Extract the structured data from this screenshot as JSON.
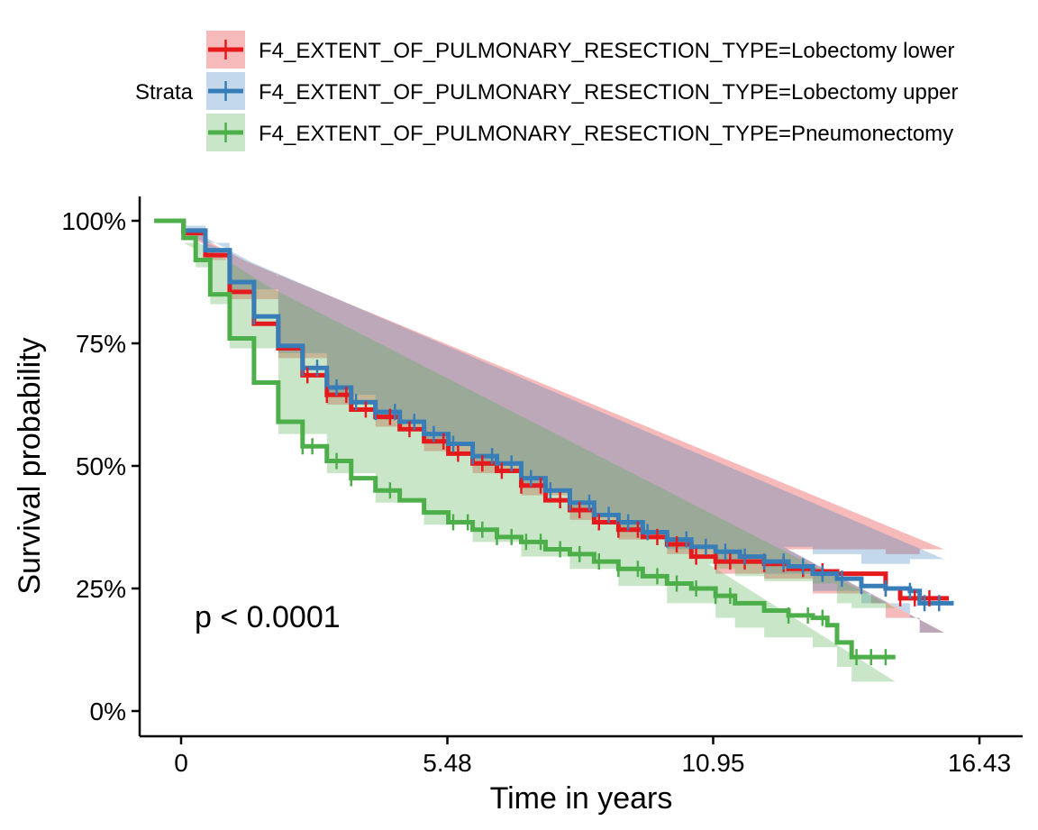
{
  "chart_data": {
    "type": "line",
    "subtype": "kaplan-meier",
    "title": "",
    "xlabel": "Time in years",
    "ylabel": "Survival probability",
    "xlim": [
      -0.82,
      16.9
    ],
    "ylim": [
      -0.05,
      1.05
    ],
    "x_ticks": [
      0,
      5.48,
      10.95,
      16.43
    ],
    "x_tick_labels": [
      "0",
      "5.48",
      "10.95",
      "16.43"
    ],
    "y_ticks": [
      0,
      0.25,
      0.5,
      0.75,
      1.0
    ],
    "y_tick_labels": [
      "0%",
      "25%",
      "50%",
      "75%",
      "100%"
    ],
    "grid": false,
    "legend": {
      "title": "Strata",
      "position": "top"
    },
    "annotation": "p <  0.0001",
    "series": [
      {
        "name": "F4_EXTENT_OF_PULMONARY_RESECTION_TYPE=Lobectomy lower",
        "color": "#E41A1C",
        "band": "#F4B6B7",
        "points": [
          [
            -0.55,
            1.0
          ],
          [
            0,
            1.0
          ],
          [
            0.05,
            0.975
          ],
          [
            0.5,
            0.93
          ],
          [
            1.0,
            0.855
          ],
          [
            1.5,
            0.79
          ],
          [
            2.0,
            0.74
          ],
          [
            2.5,
            0.685
          ],
          [
            3.0,
            0.645
          ],
          [
            3.5,
            0.615
          ],
          [
            4.0,
            0.6
          ],
          [
            4.5,
            0.575
          ],
          [
            5.0,
            0.55
          ],
          [
            5.5,
            0.525
          ],
          [
            6.0,
            0.505
          ],
          [
            6.5,
            0.49
          ],
          [
            7.0,
            0.46
          ],
          [
            7.5,
            0.43
          ],
          [
            8.0,
            0.41
          ],
          [
            8.5,
            0.385
          ],
          [
            9.0,
            0.37
          ],
          [
            9.5,
            0.355
          ],
          [
            10.0,
            0.34
          ],
          [
            10.5,
            0.315
          ],
          [
            11.0,
            0.305
          ],
          [
            11.5,
            0.305
          ],
          [
            12.0,
            0.3
          ],
          [
            12.5,
            0.29
          ],
          [
            13.0,
            0.285
          ],
          [
            13.5,
            0.28
          ],
          [
            14.2,
            0.28
          ],
          [
            14.5,
            0.25
          ],
          [
            14.8,
            0.23
          ],
          [
            15.8,
            0.23
          ]
        ],
        "band_lower": [
          [
            0.05,
            0.97
          ],
          [
            0.5,
            0.92
          ],
          [
            1.0,
            0.84
          ],
          [
            2.0,
            0.72
          ],
          [
            3.0,
            0.625
          ],
          [
            4.0,
            0.58
          ],
          [
            5.0,
            0.53
          ],
          [
            6.0,
            0.485
          ],
          [
            7.0,
            0.44
          ],
          [
            8.0,
            0.39
          ],
          [
            9.0,
            0.35
          ],
          [
            10.0,
            0.32
          ],
          [
            11.0,
            0.28
          ],
          [
            12.0,
            0.27
          ],
          [
            13.0,
            0.24
          ],
          [
            14.2,
            0.22
          ],
          [
            14.5,
            0.19
          ],
          [
            15.2,
            0.16
          ],
          [
            15.7,
            0.16
          ]
        ],
        "band_upper": [
          [
            0.05,
            0.985
          ],
          [
            0.5,
            0.94
          ],
          [
            1.0,
            0.87
          ],
          [
            2.0,
            0.76
          ],
          [
            3.0,
            0.665
          ],
          [
            4.0,
            0.62
          ],
          [
            5.0,
            0.57
          ],
          [
            6.0,
            0.525
          ],
          [
            7.0,
            0.48
          ],
          [
            8.0,
            0.43
          ],
          [
            9.0,
            0.39
          ],
          [
            10.0,
            0.36
          ],
          [
            11.0,
            0.33
          ],
          [
            12.0,
            0.33
          ],
          [
            13.0,
            0.33
          ],
          [
            14.2,
            0.33
          ],
          [
            14.5,
            0.32
          ],
          [
            15.2,
            0.33
          ],
          [
            15.7,
            0.33
          ]
        ],
        "censor_x": [
          2.6,
          3.0,
          3.4,
          3.8,
          4.3,
          4.7,
          5.4,
          5.7,
          6.2,
          6.6,
          7.0,
          7.4,
          7.8,
          8.2,
          8.6,
          9.0,
          9.4,
          9.8,
          10.2,
          10.6,
          11.0,
          11.3,
          11.6,
          12.0,
          12.4,
          12.8,
          13.2,
          14.5,
          14.8,
          15.1,
          15.4
        ]
      },
      {
        "name": "F4_EXTENT_OF_PULMONARY_RESECTION_TYPE=Lobectomy upper",
        "color": "#377EB8",
        "band": "#C6D9EB",
        "points": [
          [
            -0.55,
            1.0
          ],
          [
            0,
            1.0
          ],
          [
            0.05,
            0.98
          ],
          [
            0.5,
            0.94
          ],
          [
            1.0,
            0.875
          ],
          [
            1.5,
            0.805
          ],
          [
            2.0,
            0.745
          ],
          [
            2.5,
            0.7
          ],
          [
            3.0,
            0.66
          ],
          [
            3.5,
            0.63
          ],
          [
            4.0,
            0.61
          ],
          [
            4.5,
            0.59
          ],
          [
            5.0,
            0.565
          ],
          [
            5.5,
            0.545
          ],
          [
            6.0,
            0.52
          ],
          [
            6.5,
            0.505
          ],
          [
            7.0,
            0.475
          ],
          [
            7.5,
            0.45
          ],
          [
            8.0,
            0.425
          ],
          [
            8.5,
            0.4
          ],
          [
            9.0,
            0.385
          ],
          [
            9.5,
            0.365
          ],
          [
            10.0,
            0.35
          ],
          [
            10.5,
            0.335
          ],
          [
            11.0,
            0.325
          ],
          [
            11.5,
            0.315
          ],
          [
            12.0,
            0.305
          ],
          [
            12.5,
            0.295
          ],
          [
            13.0,
            0.28
          ],
          [
            13.5,
            0.27
          ],
          [
            14.0,
            0.255
          ],
          [
            14.5,
            0.25
          ],
          [
            15.0,
            0.245
          ],
          [
            15.2,
            0.22
          ],
          [
            15.9,
            0.22
          ]
        ],
        "band_lower": [
          [
            0.05,
            0.975
          ],
          [
            0.5,
            0.93
          ],
          [
            1.0,
            0.86
          ],
          [
            2.0,
            0.73
          ],
          [
            3.0,
            0.645
          ],
          [
            4.0,
            0.595
          ],
          [
            5.0,
            0.55
          ],
          [
            6.0,
            0.5
          ],
          [
            7.0,
            0.455
          ],
          [
            8.0,
            0.405
          ],
          [
            9.0,
            0.365
          ],
          [
            10.0,
            0.33
          ],
          [
            11.0,
            0.3
          ],
          [
            12.0,
            0.28
          ],
          [
            13.0,
            0.245
          ],
          [
            14.0,
            0.22
          ],
          [
            15.0,
            0.19
          ],
          [
            15.2,
            0.16
          ],
          [
            15.7,
            0.16
          ]
        ],
        "band_upper": [
          [
            0.05,
            0.99
          ],
          [
            0.5,
            0.955
          ],
          [
            1.0,
            0.89
          ],
          [
            2.0,
            0.765
          ],
          [
            3.0,
            0.68
          ],
          [
            4.0,
            0.63
          ],
          [
            5.0,
            0.585
          ],
          [
            6.0,
            0.54
          ],
          [
            7.0,
            0.495
          ],
          [
            8.0,
            0.445
          ],
          [
            9.0,
            0.405
          ],
          [
            10.0,
            0.37
          ],
          [
            11.0,
            0.35
          ],
          [
            12.0,
            0.335
          ],
          [
            13.0,
            0.32
          ],
          [
            14.0,
            0.3
          ],
          [
            15.0,
            0.31
          ],
          [
            15.2,
            0.31
          ],
          [
            15.7,
            0.31
          ]
        ],
        "censor_x": [
          1.5,
          2.5,
          2.8,
          3.2,
          3.6,
          4.0,
          4.4,
          4.8,
          5.2,
          5.6,
          6.0,
          6.4,
          6.8,
          7.2,
          7.6,
          8.0,
          8.4,
          8.8,
          9.2,
          9.6,
          10.0,
          10.4,
          10.8,
          11.2,
          11.6,
          12.0,
          12.4,
          12.8,
          13.2,
          13.6,
          14.0,
          14.5,
          15.0,
          15.3,
          15.6
        ]
      },
      {
        "name": "F4_EXTENT_OF_PULMONARY_RESECTION_TYPE=Pneumonectomy",
        "color": "#4DAF4A",
        "band": "#CAE7C9",
        "points": [
          [
            -0.55,
            1.0
          ],
          [
            0,
            1.0
          ],
          [
            0.05,
            0.965
          ],
          [
            0.3,
            0.92
          ],
          [
            0.6,
            0.85
          ],
          [
            1.0,
            0.76
          ],
          [
            1.5,
            0.67
          ],
          [
            2.0,
            0.59
          ],
          [
            2.5,
            0.54
          ],
          [
            3.0,
            0.51
          ],
          [
            3.5,
            0.475
          ],
          [
            4.0,
            0.45
          ],
          [
            4.5,
            0.43
          ],
          [
            5.0,
            0.405
          ],
          [
            5.5,
            0.385
          ],
          [
            6.0,
            0.37
          ],
          [
            6.5,
            0.355
          ],
          [
            7.0,
            0.345
          ],
          [
            7.5,
            0.33
          ],
          [
            8.0,
            0.32
          ],
          [
            8.5,
            0.305
          ],
          [
            9.0,
            0.29
          ],
          [
            9.5,
            0.275
          ],
          [
            10.0,
            0.26
          ],
          [
            10.5,
            0.25
          ],
          [
            11.0,
            0.235
          ],
          [
            11.4,
            0.22
          ],
          [
            12.0,
            0.205
          ],
          [
            12.5,
            0.195
          ],
          [
            13.0,
            0.19
          ],
          [
            13.3,
            0.175
          ],
          [
            13.5,
            0.14
          ],
          [
            13.8,
            0.11
          ],
          [
            14.7,
            0.11
          ]
        ],
        "band_lower": [
          [
            0.05,
            0.955
          ],
          [
            0.3,
            0.905
          ],
          [
            0.6,
            0.83
          ],
          [
            1.0,
            0.74
          ],
          [
            2.0,
            0.565
          ],
          [
            3.0,
            0.485
          ],
          [
            4.0,
            0.425
          ],
          [
            5.0,
            0.38
          ],
          [
            6.0,
            0.345
          ],
          [
            7.0,
            0.315
          ],
          [
            8.0,
            0.29
          ],
          [
            9.0,
            0.255
          ],
          [
            10.0,
            0.22
          ],
          [
            11.0,
            0.19
          ],
          [
            11.4,
            0.17
          ],
          [
            12.0,
            0.15
          ],
          [
            13.0,
            0.13
          ],
          [
            13.5,
            0.09
          ],
          [
            13.8,
            0.06
          ],
          [
            14.7,
            0.06
          ]
        ],
        "band_upper": [
          [
            0.05,
            0.975
          ],
          [
            0.3,
            0.935
          ],
          [
            0.6,
            0.87
          ],
          [
            1.0,
            0.78
          ],
          [
            2.0,
            0.615
          ],
          [
            3.0,
            0.535
          ],
          [
            4.0,
            0.475
          ],
          [
            5.0,
            0.43
          ],
          [
            6.0,
            0.395
          ],
          [
            7.0,
            0.375
          ],
          [
            8.0,
            0.355
          ],
          [
            9.0,
            0.325
          ],
          [
            10.0,
            0.3
          ],
          [
            11.0,
            0.29
          ],
          [
            11.4,
            0.275
          ],
          [
            12.0,
            0.265
          ],
          [
            13.0,
            0.26
          ],
          [
            13.5,
            0.22
          ],
          [
            13.8,
            0.21
          ],
          [
            14.7,
            0.21
          ]
        ],
        "censor_x": [
          2.5,
          2.7,
          3.2,
          3.5,
          4.3,
          5.6,
          5.9,
          6.2,
          6.5,
          6.8,
          7.1,
          7.4,
          7.8,
          8.2,
          8.6,
          9.0,
          9.4,
          9.8,
          10.2,
          10.6,
          11.0,
          11.3,
          12.5,
          12.9,
          13.2,
          13.9,
          14.2,
          14.5
        ]
      }
    ]
  }
}
